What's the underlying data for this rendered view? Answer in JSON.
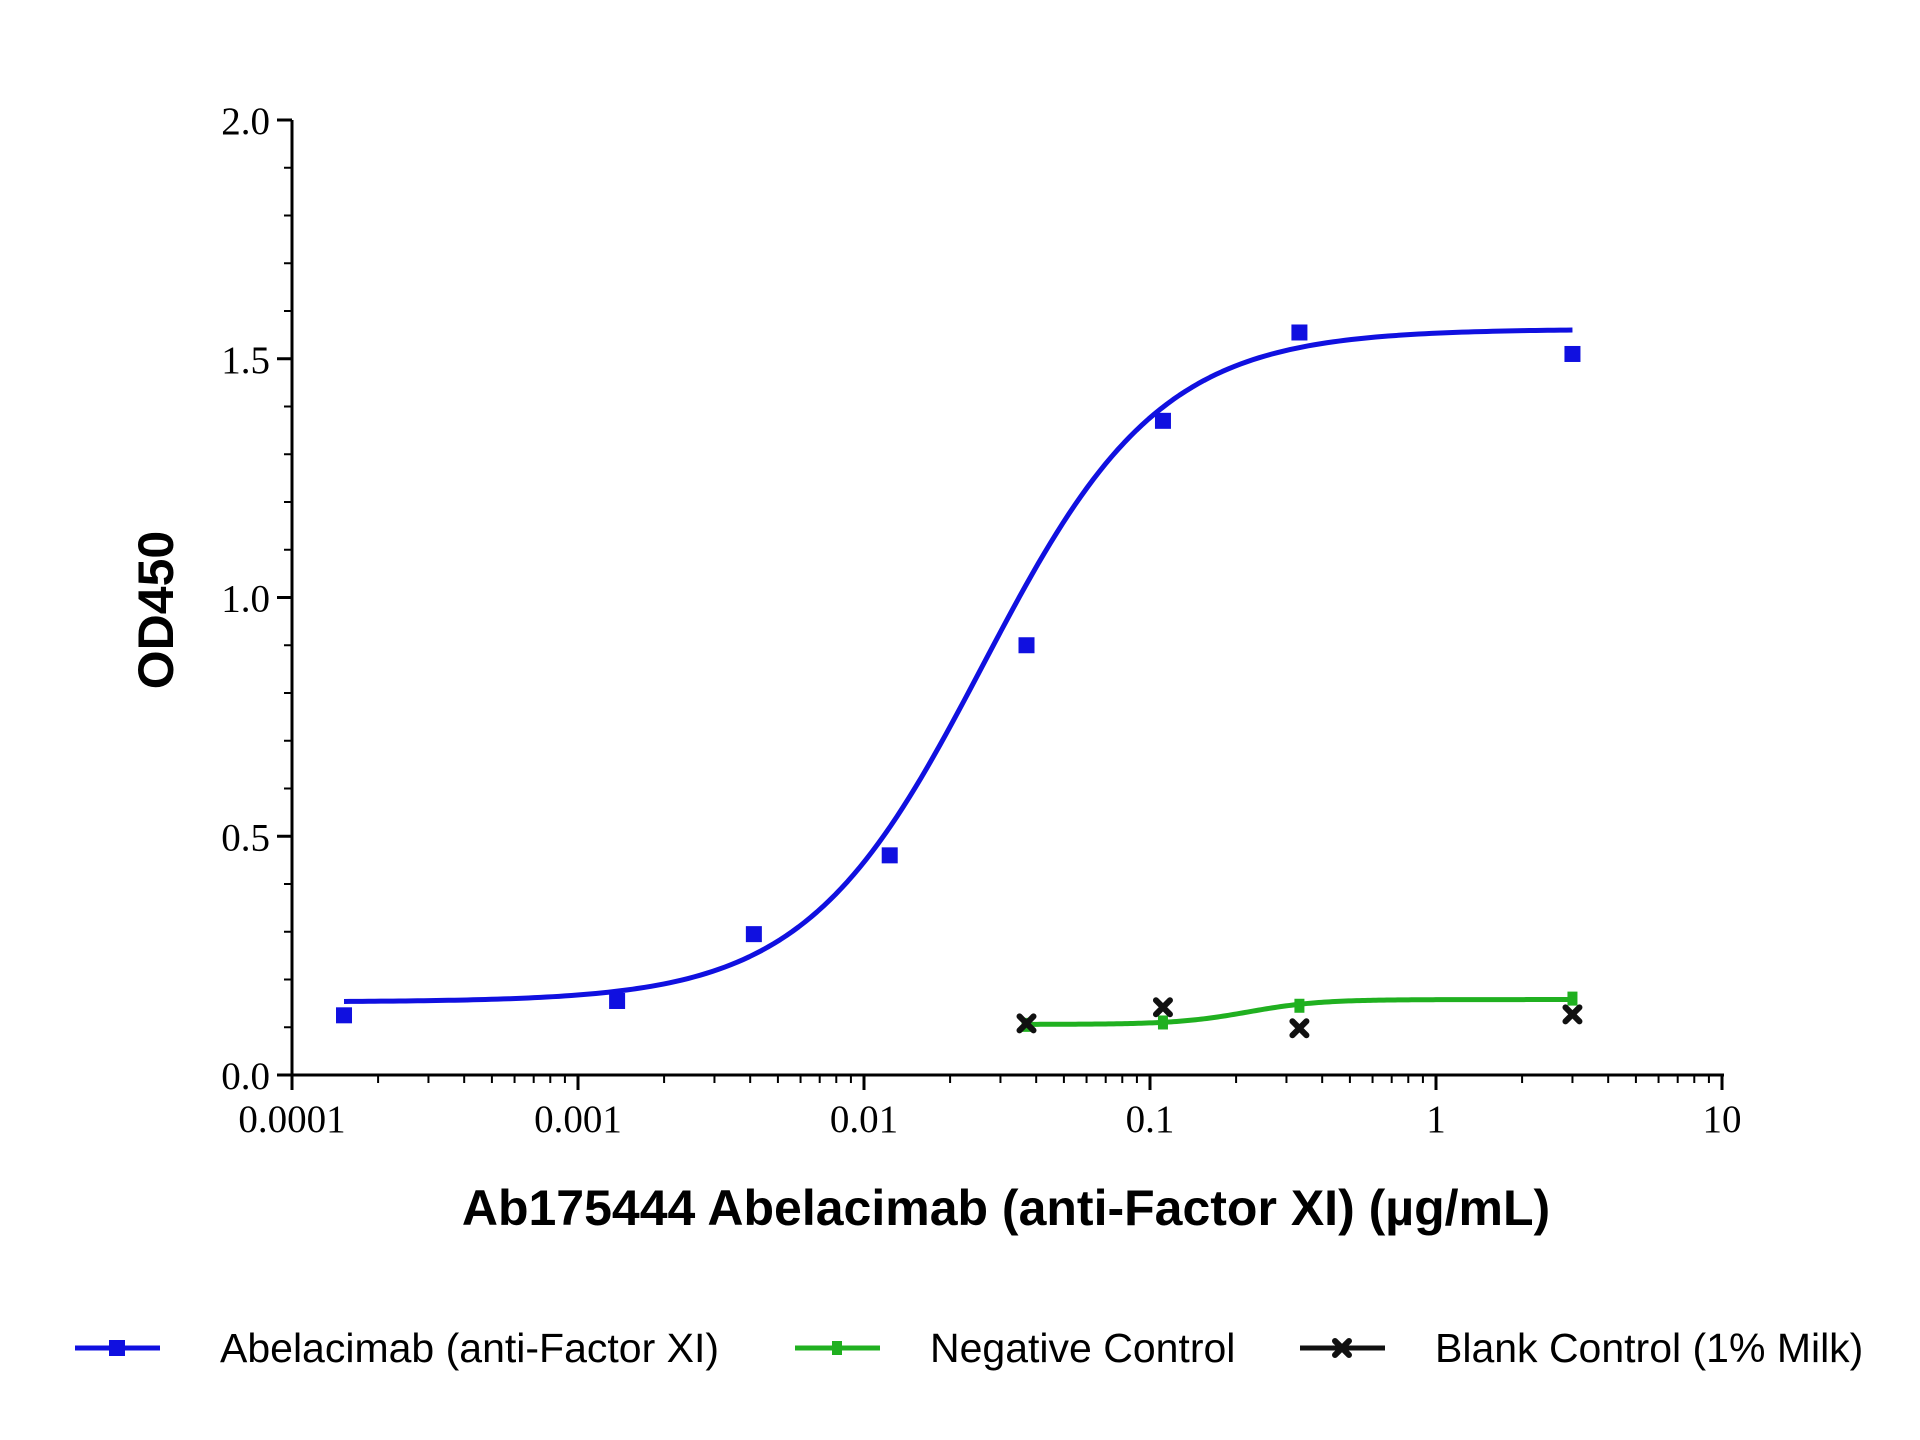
{
  "chart_data": {
    "type": "scatter",
    "xlabel": "Ab175444 Abelacimab (anti-Factor XI) (µg/mL)",
    "ylabel": "OD450",
    "x_scale": "log",
    "xlim": [
      0.0001,
      10
    ],
    "ylim": [
      0,
      2.0
    ],
    "x_ticks": [
      {
        "value": 0.0001,
        "label": "0.0001"
      },
      {
        "value": 0.001,
        "label": "0.001"
      },
      {
        "value": 0.01,
        "label": "0.01"
      },
      {
        "value": 0.1,
        "label": "0.1"
      },
      {
        "value": 1,
        "label": "1"
      },
      {
        "value": 10,
        "label": "10"
      }
    ],
    "y_ticks": [
      {
        "value": 0,
        "label": "0.0"
      },
      {
        "value": 0.5,
        "label": "0.5"
      },
      {
        "value": 1.0,
        "label": "1.0"
      },
      {
        "value": 1.5,
        "label": "1.5"
      },
      {
        "value": 2.0,
        "label": "2.0"
      }
    ],
    "grid": false,
    "legend_position": "bottom",
    "series": [
      {
        "name": "Abelacimab (anti-Factor XI)",
        "color": "#1010e0",
        "marker": "square",
        "x": [
          0.000152,
          0.00137,
          0.00412,
          0.0123,
          0.037,
          0.111,
          0.333,
          3.0
        ],
        "y": [
          0.125,
          0.155,
          0.295,
          0.46,
          0.9,
          1.37,
          1.555,
          1.51
        ],
        "fit": {
          "bottom": 0.153,
          "top": 1.562,
          "ec50": 0.026,
          "hill": 1.4
        }
      },
      {
        "name": "Negative Control",
        "color": "#20b020",
        "marker": "dash",
        "x": [
          0.037,
          0.111,
          0.333,
          3.0
        ],
        "y": [
          0.105,
          0.11,
          0.145,
          0.16
        ],
        "fit": {
          "bottom": 0.106,
          "top": 0.158,
          "ec50": 0.22,
          "hill": 3.5
        }
      },
      {
        "name": "Blank Control (1% Milk)",
        "color": "#111111",
        "marker": "x",
        "x": [
          0.037,
          0.111,
          0.333,
          3.0
        ],
        "y": [
          0.108,
          0.142,
          0.098,
          0.127
        ]
      }
    ]
  }
}
